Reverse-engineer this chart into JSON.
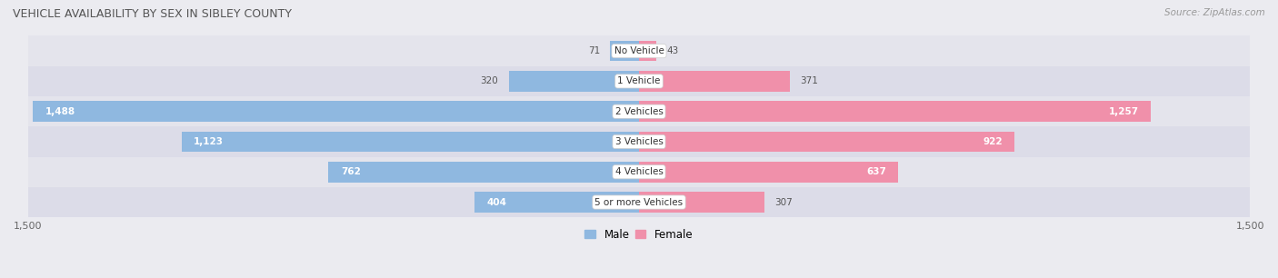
{
  "title": "VEHICLE AVAILABILITY BY SEX IN SIBLEY COUNTY",
  "source": "Source: ZipAtlas.com",
  "categories": [
    "No Vehicle",
    "1 Vehicle",
    "2 Vehicles",
    "3 Vehicles",
    "4 Vehicles",
    "5 or more Vehicles"
  ],
  "male_values": [
    71,
    320,
    1488,
    1123,
    762,
    404
  ],
  "female_values": [
    43,
    371,
    1257,
    922,
    637,
    307
  ],
  "male_color": "#8fb8e0",
  "female_color": "#f090aa",
  "bg_color": "#ebebf0",
  "row_bg_light": "#e4e4ec",
  "row_bg_dark": "#dcdce8",
  "label_color": "#555555",
  "xlim": 1500,
  "legend_male": "Male",
  "legend_female": "Female"
}
